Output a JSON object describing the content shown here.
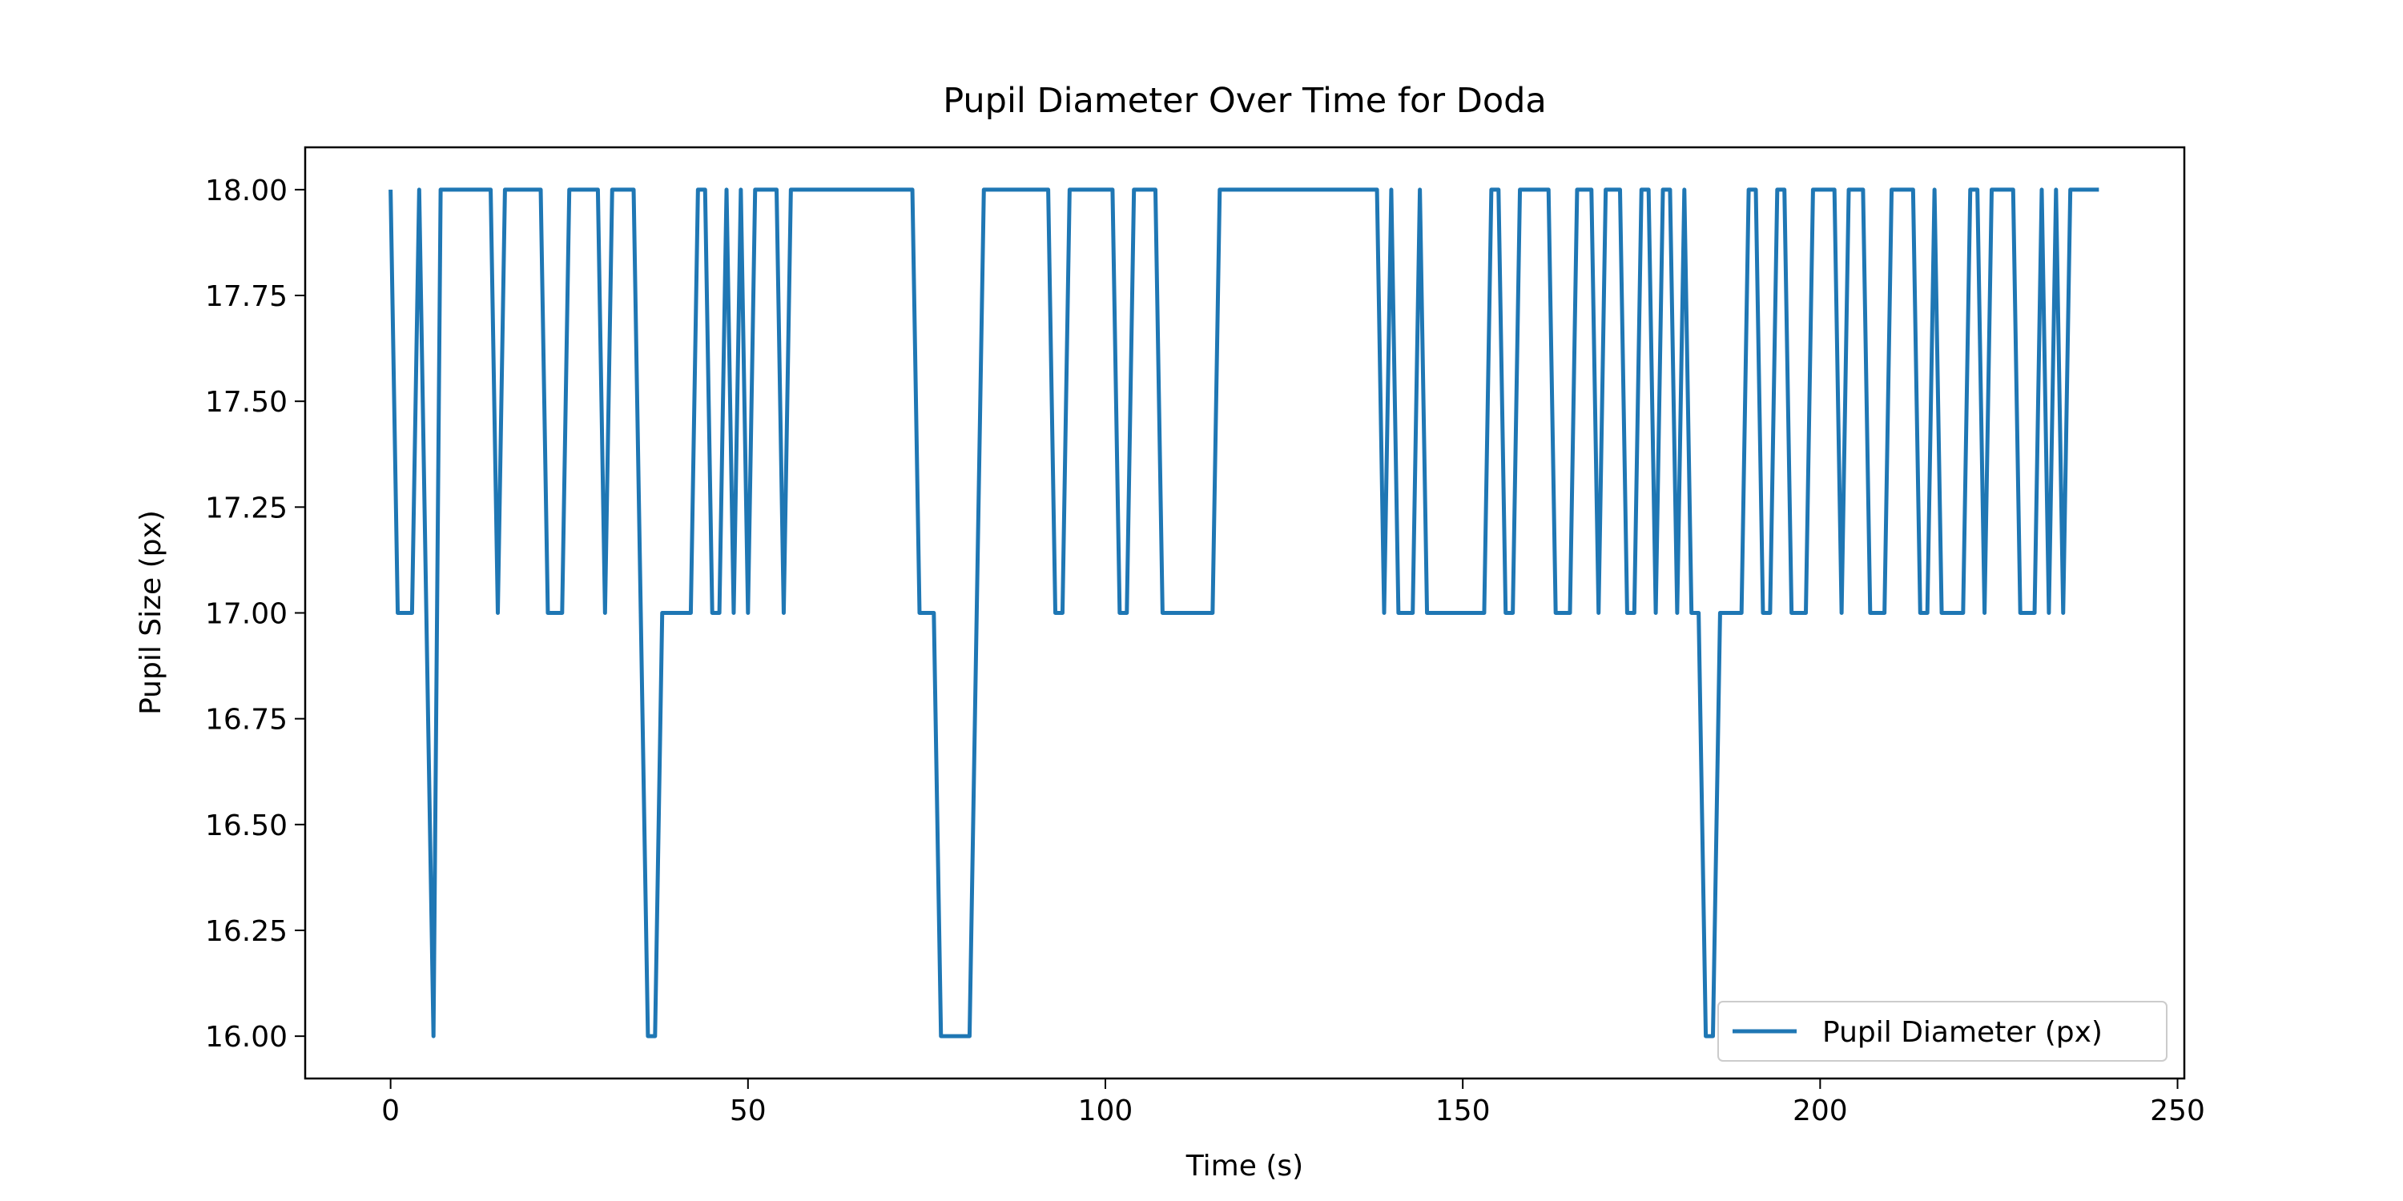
{
  "chart_data": {
    "type": "line",
    "title": "Pupil Diameter Over Time for Doda",
    "xlabel": "Time (s)",
    "ylabel": "Pupil Size (px)",
    "x": [
      0,
      1,
      2,
      3,
      4,
      5,
      6,
      7,
      8,
      9,
      10,
      11,
      12,
      13,
      14,
      15,
      16,
      17,
      18,
      19,
      20,
      21,
      22,
      23,
      24,
      25,
      26,
      27,
      28,
      29,
      30,
      31,
      32,
      33,
      34,
      35,
      36,
      37,
      38,
      39,
      40,
      41,
      42,
      43,
      44,
      45,
      46,
      47,
      48,
      49,
      50,
      51,
      52,
      53,
      54,
      55,
      56,
      57,
      58,
      59,
      60,
      61,
      62,
      63,
      64,
      65,
      66,
      67,
      68,
      69,
      70,
      71,
      72,
      73,
      74,
      75,
      76,
      77,
      78,
      79,
      80,
      81,
      82,
      83,
      84,
      85,
      86,
      87,
      88,
      89,
      90,
      91,
      92,
      93,
      94,
      95,
      96,
      97,
      98,
      99,
      100,
      101,
      102,
      103,
      104,
      105,
      106,
      107,
      108,
      109,
      110,
      111,
      112,
      113,
      114,
      115,
      116,
      117,
      118,
      119,
      120,
      121,
      122,
      123,
      124,
      125,
      126,
      127,
      128,
      129,
      130,
      131,
      132,
      133,
      134,
      135,
      136,
      137,
      138,
      139,
      140,
      141,
      142,
      143,
      144,
      145,
      146,
      147,
      148,
      149,
      150,
      151,
      152,
      153,
      154,
      155,
      156,
      157,
      158,
      159,
      160,
      161,
      162,
      163,
      164,
      165,
      166,
      167,
      168,
      169,
      170,
      171,
      172,
      173,
      174,
      175,
      176,
      177,
      178,
      179,
      180,
      181,
      182,
      183,
      184,
      185,
      186,
      187,
      188,
      189,
      190,
      191,
      192,
      193,
      194,
      195,
      196,
      197,
      198,
      199,
      200,
      201,
      202,
      203,
      204,
      205,
      206,
      207,
      208,
      209,
      210,
      211,
      212,
      213,
      214,
      215,
      216,
      217,
      218,
      219,
      220,
      221,
      222,
      223,
      224,
      225,
      226,
      227,
      228,
      229,
      230,
      231,
      232,
      233,
      234,
      235,
      236,
      237,
      238,
      239
    ],
    "series": [
      {
        "name": "Pupil Diameter (px)",
        "color": "#1f77b4",
        "values": [
          18,
          17,
          17,
          17,
          18,
          17,
          16,
          18,
          18,
          18,
          18,
          18,
          18,
          18,
          18,
          17,
          18,
          18,
          18,
          18,
          18,
          18,
          17,
          17,
          17,
          18,
          18,
          18,
          18,
          18,
          17,
          18,
          18,
          18,
          18,
          17,
          16,
          16,
          17,
          17,
          17,
          17,
          17,
          18,
          18,
          17,
          17,
          18,
          17,
          18,
          17,
          18,
          18,
          18,
          18,
          17,
          18,
          18,
          18,
          18,
          18,
          18,
          18,
          18,
          18,
          18,
          18,
          18,
          18,
          18,
          18,
          18,
          18,
          18,
          17,
          17,
          17,
          16,
          16,
          16,
          16,
          16,
          17,
          18,
          18,
          18,
          18,
          18,
          18,
          18,
          18,
          18,
          18,
          17,
          17,
          18,
          18,
          18,
          18,
          18,
          18,
          18,
          17,
          17,
          18,
          18,
          18,
          18,
          17,
          17,
          17,
          17,
          17,
          17,
          17,
          17,
          18,
          18,
          18,
          18,
          18,
          18,
          18,
          18,
          18,
          18,
          18,
          18,
          18,
          18,
          18,
          18,
          18,
          18,
          18,
          18,
          18,
          18,
          18,
          17,
          18,
          17,
          17,
          17,
          18,
          17,
          17,
          17,
          17,
          17,
          17,
          17,
          17,
          17,
          18,
          18,
          17,
          17,
          18,
          18,
          18,
          18,
          18,
          17,
          17,
          17,
          18,
          18,
          18,
          17,
          18,
          18,
          18,
          17,
          17,
          18,
          18,
          17,
          18,
          18,
          17,
          18,
          17,
          17,
          16,
          16,
          17,
          17,
          17,
          17,
          18,
          18,
          17,
          17,
          18,
          18,
          17,
          17,
          17,
          18,
          18,
          18,
          18,
          17,
          18,
          18,
          18,
          17,
          17,
          17,
          18,
          18,
          18,
          18,
          17,
          17,
          18,
          17,
          17,
          17,
          17,
          18,
          18,
          17,
          18,
          18,
          18,
          18,
          17,
          17,
          17,
          18,
          17,
          18,
          17,
          18,
          18,
          18,
          18,
          18
        ]
      }
    ],
    "xlim": [
      -11.95,
      250.95
    ],
    "xticks": [
      0,
      50,
      100,
      150,
      200,
      250
    ],
    "ylim": [
      15.9,
      18.1
    ],
    "yticks": [
      {
        "value": 16,
        "label": "16.00"
      },
      {
        "value": 16.25,
        "label": "16.25"
      },
      {
        "value": 16.5,
        "label": "16.50"
      },
      {
        "value": 16.75,
        "label": "16.75"
      },
      {
        "value": 17,
        "label": "17.00"
      },
      {
        "value": 17.25,
        "label": "17.25"
      },
      {
        "value": 17.5,
        "label": "17.50"
      },
      {
        "value": 17.75,
        "label": "17.75"
      },
      {
        "value": 18,
        "label": "18.00"
      }
    ],
    "grid": false,
    "legend": "lower right"
  }
}
